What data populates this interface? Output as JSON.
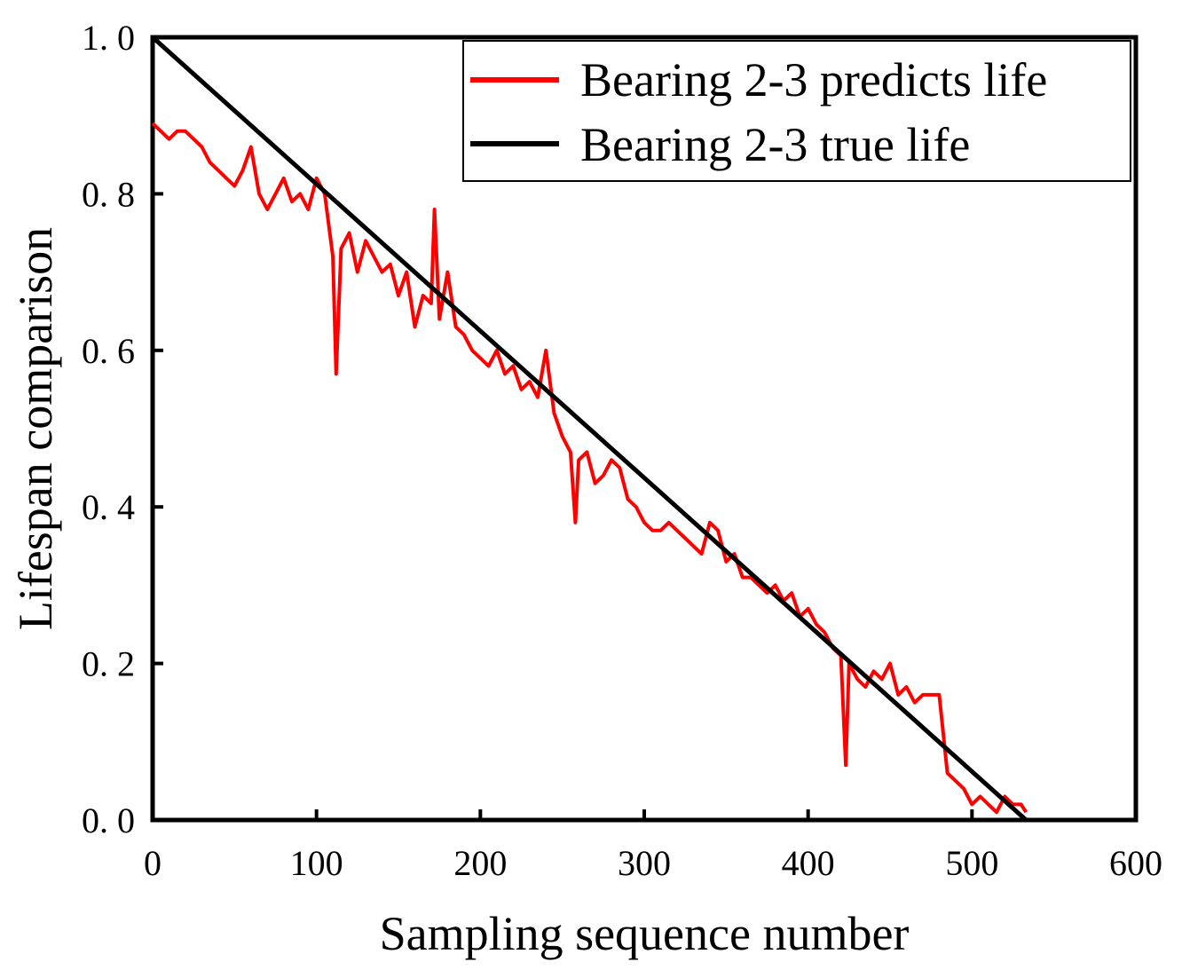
{
  "chart_data": {
    "type": "line",
    "title": "",
    "xlabel": "Sampling sequence number",
    "ylabel": "Lifespan comparison",
    "xlim": [
      0,
      600
    ],
    "ylim": [
      0.0,
      1.0
    ],
    "x_ticks": [
      0,
      100,
      200,
      300,
      400,
      500,
      600
    ],
    "y_ticks": [
      0.0,
      0.2,
      0.4,
      0.6,
      0.8,
      1.0
    ],
    "x_tick_labels": [
      "0",
      "100",
      "200",
      "300",
      "400",
      "500",
      "600"
    ],
    "y_tick_labels": [
      "0. 0",
      "0. 2",
      "0. 4",
      "0. 6",
      "0. 8",
      "1. 0"
    ],
    "grid": false,
    "legend_position": "top-right",
    "series": [
      {
        "name": "Bearing 2-3 predicts life",
        "color": "#ff0000",
        "x": [
          0,
          5,
          10,
          15,
          20,
          25,
          30,
          35,
          40,
          45,
          50,
          55,
          60,
          65,
          70,
          75,
          80,
          85,
          90,
          95,
          100,
          105,
          110,
          112,
          115,
          120,
          125,
          130,
          135,
          140,
          145,
          150,
          155,
          160,
          165,
          170,
          172,
          175,
          180,
          185,
          190,
          195,
          200,
          205,
          210,
          215,
          220,
          225,
          230,
          235,
          240,
          245,
          250,
          255,
          258,
          260,
          265,
          270,
          275,
          280,
          285,
          290,
          295,
          300,
          305,
          310,
          315,
          320,
          325,
          330,
          335,
          340,
          345,
          350,
          355,
          360,
          365,
          370,
          375,
          380,
          385,
          390,
          395,
          400,
          405,
          410,
          415,
          420,
          423,
          425,
          430,
          435,
          440,
          445,
          450,
          455,
          460,
          465,
          470,
          475,
          480,
          485,
          490,
          495,
          500,
          505,
          510,
          515,
          520,
          525,
          530,
          533
        ],
        "values": [
          0.89,
          0.88,
          0.87,
          0.88,
          0.88,
          0.87,
          0.86,
          0.84,
          0.83,
          0.82,
          0.81,
          0.83,
          0.86,
          0.8,
          0.78,
          0.8,
          0.82,
          0.79,
          0.8,
          0.78,
          0.82,
          0.8,
          0.72,
          0.57,
          0.73,
          0.75,
          0.7,
          0.74,
          0.72,
          0.7,
          0.71,
          0.67,
          0.7,
          0.63,
          0.67,
          0.66,
          0.78,
          0.64,
          0.7,
          0.63,
          0.62,
          0.6,
          0.59,
          0.58,
          0.6,
          0.57,
          0.58,
          0.55,
          0.56,
          0.54,
          0.6,
          0.52,
          0.49,
          0.47,
          0.38,
          0.46,
          0.47,
          0.43,
          0.44,
          0.46,
          0.45,
          0.41,
          0.4,
          0.38,
          0.37,
          0.37,
          0.38,
          0.37,
          0.36,
          0.35,
          0.34,
          0.38,
          0.37,
          0.33,
          0.34,
          0.31,
          0.31,
          0.3,
          0.29,
          0.3,
          0.28,
          0.29,
          0.26,
          0.27,
          0.25,
          0.24,
          0.22,
          0.21,
          0.07,
          0.2,
          0.18,
          0.17,
          0.19,
          0.18,
          0.2,
          0.16,
          0.17,
          0.15,
          0.16,
          0.16,
          0.16,
          0.06,
          0.05,
          0.04,
          0.02,
          0.03,
          0.02,
          0.01,
          0.03,
          0.02,
          0.02,
          0.01
        ]
      },
      {
        "name": "Bearing 2-3 true life",
        "color": "#000000",
        "x": [
          0,
          533
        ],
        "values": [
          1.0,
          0.0
        ]
      }
    ]
  }
}
